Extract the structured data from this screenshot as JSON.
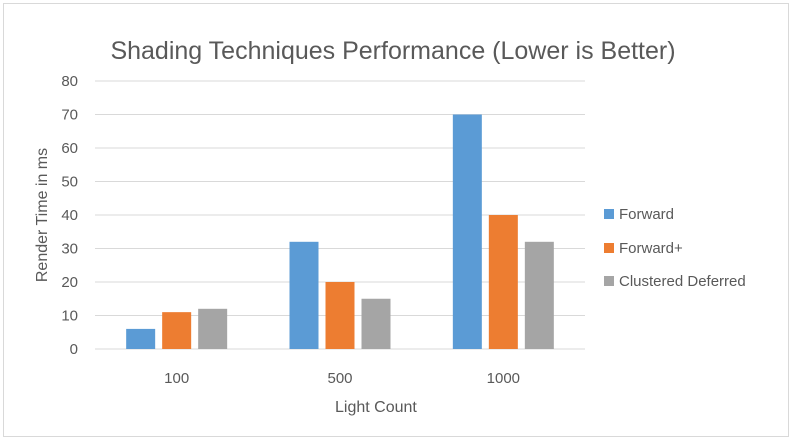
{
  "chart_data": {
    "type": "bar",
    "title": "Shading Techniques Performance (Lower is Better)",
    "xlabel": "Light Count",
    "ylabel": "Render Time in ms",
    "categories": [
      "100",
      "500",
      "1000"
    ],
    "series": [
      {
        "name": "Forward",
        "color": "#5b9bd5",
        "values": [
          6,
          32,
          70
        ]
      },
      {
        "name": "Forward+",
        "color": "#ed7d31",
        "values": [
          11,
          20,
          40
        ]
      },
      {
        "name": "Clustered Deferred",
        "color": "#a5a5a5",
        "values": [
          12,
          15,
          32
        ]
      }
    ],
    "ylim": [
      0,
      80
    ],
    "yticks": [
      "0",
      "10",
      "20",
      "30",
      "40",
      "50",
      "60",
      "70",
      "80"
    ],
    "grid": true,
    "legend": "right"
  }
}
